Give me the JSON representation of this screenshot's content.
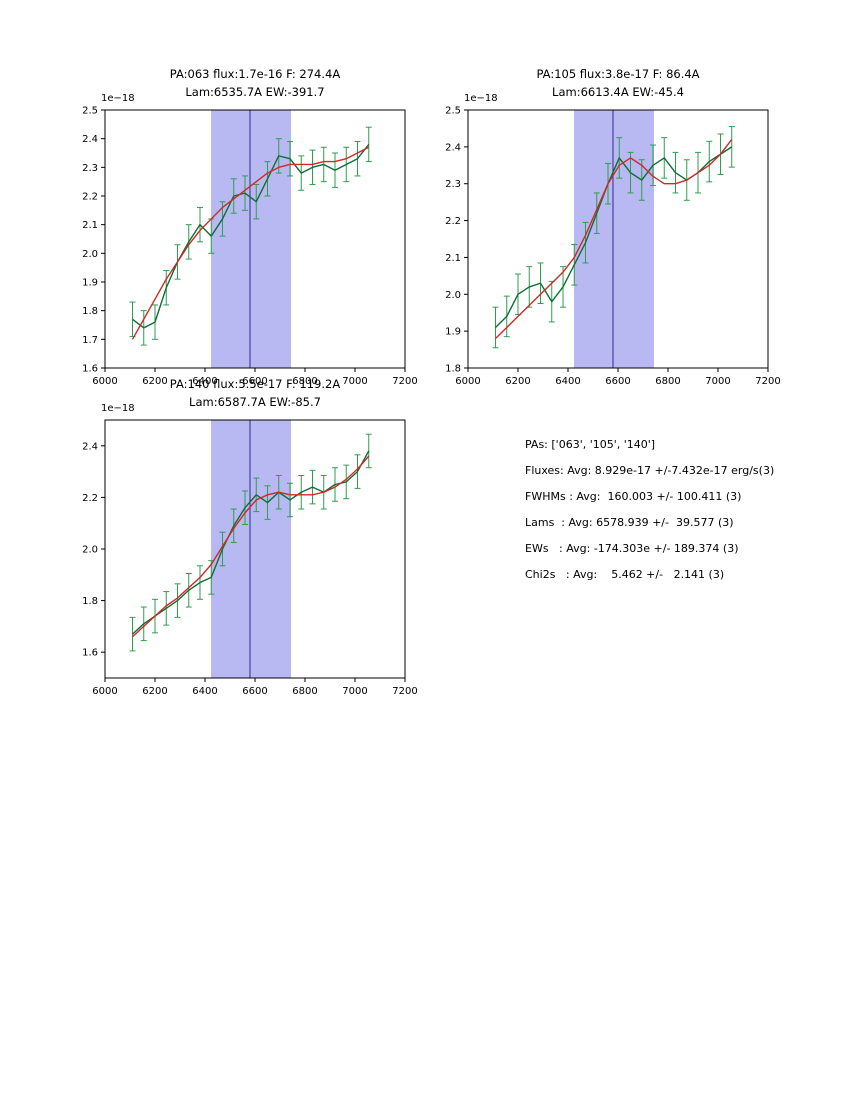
{
  "page": {
    "background": "#ffffff"
  },
  "colors": {
    "band": "#b8b8f2",
    "vline": "#2b2b8c",
    "data_line": "#0e6e35",
    "error_bar": "#2f9e4f",
    "fit_line": "#cf2a27",
    "axis": "#000000"
  },
  "stats_panel": {
    "lines": [
      "PAs: ['063', '105', '140']",
      "Fluxes: Avg: 8.929e-17 +/-7.432e-17 erg/s(3)",
      "FWHMs : Avg:  160.003 +/- 100.411 (3)",
      "Lams  : Avg: 6578.939 +/-  39.577 (3)",
      "EWs   : Avg: -174.303e +/- 189.374 (3)",
      "Chi2s   : Avg:    5.462 +/-   2.141 (3)"
    ]
  },
  "chart_data": [
    {
      "type": "line",
      "title_line1": "PA:063 flux:1.7e-16 F: 274.4A",
      "title_line2": "Lam:6535.7A EW:-391.7",
      "offset_label": "1e−18",
      "xlim": [
        6000,
        7200
      ],
      "ylim": [
        1.6,
        2.5
      ],
      "xticks": [
        6000,
        6200,
        6400,
        6600,
        6800,
        7000,
        7200
      ],
      "yticks": [
        1.6,
        1.7,
        1.8,
        1.9,
        2.0,
        2.1,
        2.2,
        2.3,
        2.4,
        2.5
      ],
      "band": [
        6424,
        6744
      ],
      "line_x": 6580,
      "err": 0.06,
      "x": [
        6110,
        6155,
        6200,
        6245,
        6290,
        6335,
        6380,
        6425,
        6470,
        6515,
        6560,
        6605,
        6650,
        6695,
        6740,
        6785,
        6830,
        6875,
        6920,
        6965,
        7010,
        7055
      ],
      "series": [
        {
          "name": "data",
          "values": [
            1.77,
            1.74,
            1.76,
            1.88,
            1.97,
            2.04,
            2.1,
            2.06,
            2.12,
            2.2,
            2.21,
            2.18,
            2.26,
            2.34,
            2.33,
            2.28,
            2.3,
            2.31,
            2.29,
            2.31,
            2.33,
            2.38
          ]
        },
        {
          "name": "fit",
          "values": [
            1.7,
            1.77,
            1.84,
            1.91,
            1.97,
            2.03,
            2.08,
            2.12,
            2.16,
            2.19,
            2.22,
            2.25,
            2.28,
            2.3,
            2.31,
            2.31,
            2.31,
            2.32,
            2.32,
            2.33,
            2.35,
            2.37
          ]
        }
      ]
    },
    {
      "type": "line",
      "title_line1": "PA:105 flux:3.8e-17 F: 86.4A",
      "title_line2": "Lam:6613.4A EW:-45.4",
      "offset_label": "1e−18",
      "xlim": [
        6000,
        7200
      ],
      "ylim": [
        1.8,
        2.5
      ],
      "xticks": [
        6000,
        6200,
        6400,
        6600,
        6800,
        7000,
        7200
      ],
      "yticks": [
        1.8,
        1.9,
        2.0,
        2.1,
        2.2,
        2.3,
        2.4,
        2.5
      ],
      "band": [
        6424,
        6744
      ],
      "line_x": 6580,
      "err": 0.055,
      "x": [
        6110,
        6155,
        6200,
        6245,
        6290,
        6335,
        6380,
        6425,
        6470,
        6515,
        6560,
        6605,
        6650,
        6695,
        6740,
        6785,
        6830,
        6875,
        6920,
        6965,
        7010,
        7055
      ],
      "series": [
        {
          "name": "data",
          "values": [
            1.91,
            1.94,
            2.0,
            2.02,
            2.03,
            1.98,
            2.02,
            2.08,
            2.14,
            2.22,
            2.3,
            2.37,
            2.33,
            2.31,
            2.35,
            2.37,
            2.33,
            2.31,
            2.33,
            2.36,
            2.38,
            2.4
          ]
        },
        {
          "name": "fit",
          "values": [
            1.88,
            1.91,
            1.94,
            1.97,
            2.0,
            2.03,
            2.06,
            2.1,
            2.16,
            2.23,
            2.3,
            2.35,
            2.37,
            2.35,
            2.32,
            2.3,
            2.3,
            2.31,
            2.33,
            2.35,
            2.38,
            2.42
          ]
        }
      ]
    },
    {
      "type": "line",
      "title_line1": "PA:140 flux:5.5e-17 F: 119.2A",
      "title_line2": "Lam:6587.7A EW:-85.7",
      "offset_label": "1e−18",
      "xlim": [
        6000,
        7200
      ],
      "ylim": [
        1.5,
        2.5
      ],
      "xticks": [
        6000,
        6200,
        6400,
        6600,
        6800,
        7000,
        7200
      ],
      "yticks": [
        1.6,
        1.8,
        2.0,
        2.2,
        2.4
      ],
      "band": [
        6424,
        6744
      ],
      "line_x": 6580,
      "err": 0.065,
      "x": [
        6110,
        6155,
        6200,
        6245,
        6290,
        6335,
        6380,
        6425,
        6470,
        6515,
        6560,
        6605,
        6650,
        6695,
        6740,
        6785,
        6830,
        6875,
        6920,
        6965,
        7010,
        7055
      ],
      "series": [
        {
          "name": "data",
          "values": [
            1.67,
            1.71,
            1.74,
            1.77,
            1.8,
            1.84,
            1.87,
            1.89,
            2.0,
            2.09,
            2.16,
            2.21,
            2.18,
            2.22,
            2.19,
            2.22,
            2.24,
            2.22,
            2.25,
            2.26,
            2.3,
            2.38
          ]
        },
        {
          "name": "fit",
          "values": [
            1.66,
            1.7,
            1.74,
            1.78,
            1.81,
            1.85,
            1.89,
            1.94,
            2.01,
            2.08,
            2.14,
            2.19,
            2.21,
            2.22,
            2.21,
            2.21,
            2.21,
            2.22,
            2.24,
            2.27,
            2.31,
            2.36
          ]
        }
      ]
    }
  ]
}
